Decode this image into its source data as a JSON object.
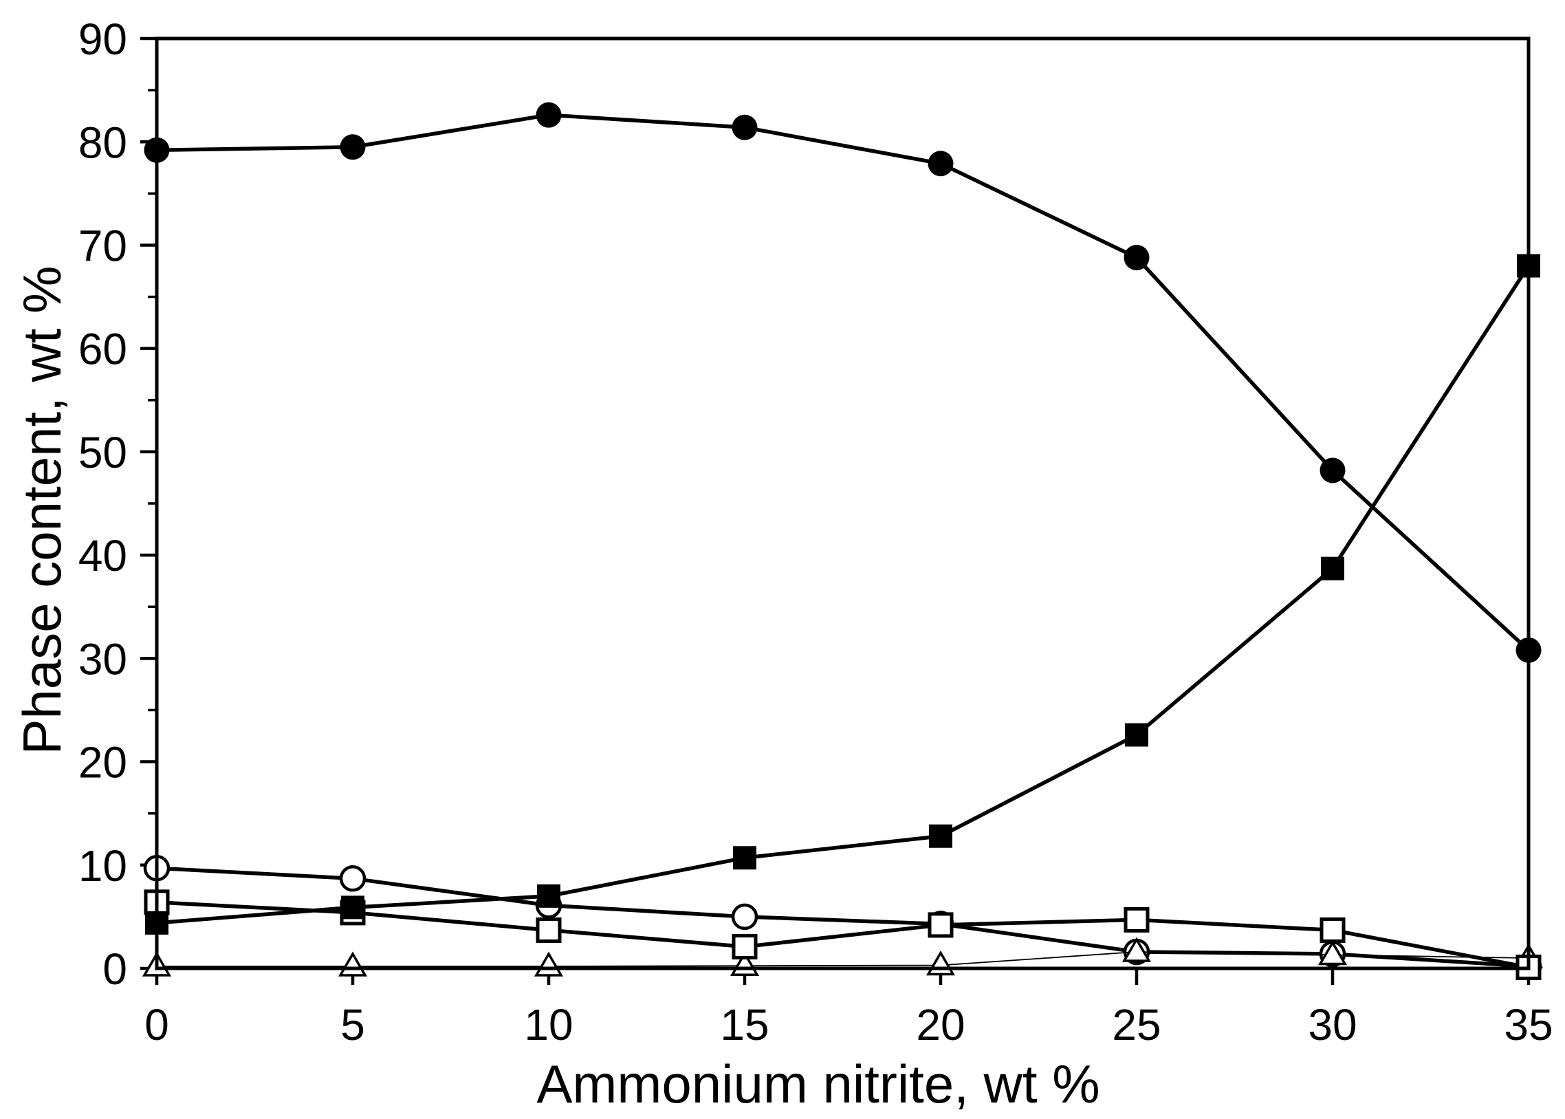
{
  "chart_data": {
    "type": "line",
    "title": "",
    "xlabel": "Ammonium nitrite, wt %",
    "ylabel": "Phase content, wt %",
    "x": [
      0,
      5,
      10,
      15,
      20,
      25,
      30,
      35
    ],
    "xlim": [
      0,
      35
    ],
    "ylim": [
      0,
      90
    ],
    "x_ticks": [
      0,
      5,
      10,
      15,
      20,
      25,
      30,
      35
    ],
    "y_ticks_major": [
      0,
      10,
      20,
      30,
      40,
      50,
      60,
      70,
      80,
      90
    ],
    "y_ticks_minor": [
      5,
      15,
      25,
      35,
      45,
      55,
      65,
      75,
      85
    ],
    "grid": false,
    "legend_position": "none",
    "plot_background": "#ffffff",
    "line_color": "#000000",
    "series": [
      {
        "name": "open-circle-phase",
        "marker": "circle",
        "variant": "open",
        "line": "thick",
        "values": [
          9.7,
          8.7,
          6.1,
          5.0,
          4.3,
          1.6,
          1.4,
          0.2
        ]
      },
      {
        "name": "open-triangle-phase",
        "marker": "triangle",
        "variant": "open",
        "line": "thin",
        "values": [
          0.2,
          0.2,
          0.2,
          0.25,
          0.3,
          1.6,
          1.3,
          1.0
        ]
      },
      {
        "name": "open-square-phase",
        "marker": "square",
        "variant": "open",
        "line": "thick",
        "values": [
          6.4,
          5.4,
          3.7,
          2.1,
          4.2,
          4.7,
          3.7,
          0.1
        ]
      },
      {
        "name": "filled-square-phase",
        "marker": "square",
        "variant": "filled",
        "line": "thick",
        "values": [
          4.4,
          5.9,
          7.0,
          10.7,
          12.8,
          22.6,
          38.7,
          68.0
        ]
      },
      {
        "name": "filled-circle-phase",
        "marker": "circle",
        "variant": "filled",
        "line": "thick",
        "values": [
          79.2,
          79.5,
          82.6,
          81.4,
          77.9,
          68.8,
          48.2,
          30.8
        ]
      }
    ]
  }
}
